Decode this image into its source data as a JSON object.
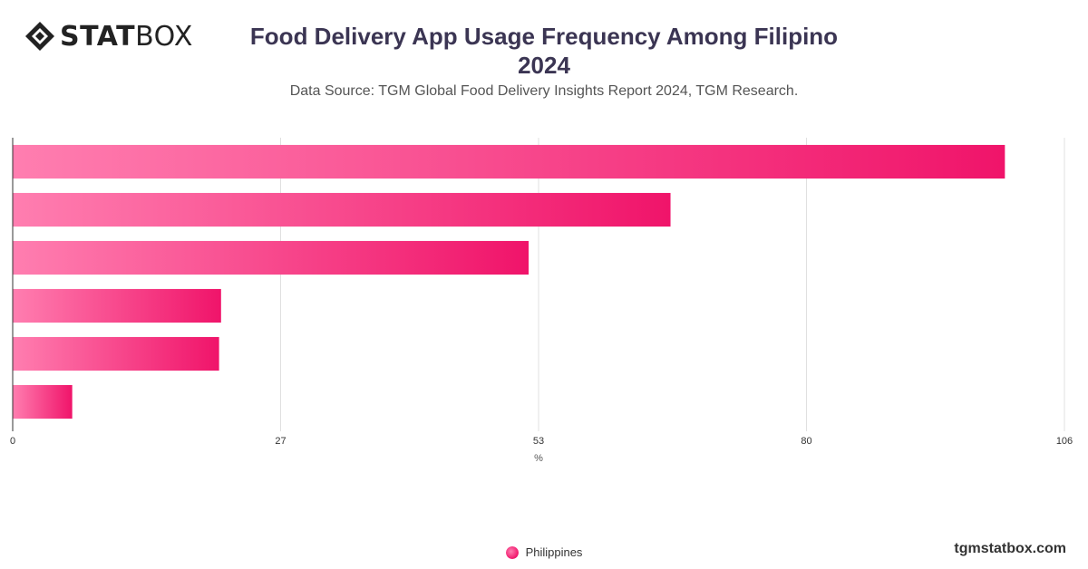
{
  "brand": {
    "bold": "STAT",
    "light": "BOX"
  },
  "header": {
    "title_line1": "Food Delivery App Usage Frequency Among Filipino",
    "title_line2": "2024",
    "subtitle": "Data Source: TGM Global Food Delivery Insights Report 2024, TGM Research."
  },
  "footer": {
    "site": "tgmstatbox.com"
  },
  "colors": {
    "bar_start": "#ff7eb0",
    "bar_end": "#f0146a",
    "grid": "#e0e0e0",
    "axis": "#333333"
  },
  "chart_data": {
    "type": "bar",
    "orientation": "horizontal",
    "categories": [
      "",
      "",
      "",
      "",
      "",
      ""
    ],
    "series": [
      {
        "name": "Philippines",
        "values": [
          100,
          66.3,
          52,
          21,
          20.8,
          6
        ]
      }
    ],
    "xlabel": "%",
    "xlim": [
      0,
      106
    ],
    "xticks": [
      0,
      27,
      53,
      80,
      106
    ],
    "grid": true,
    "legend": "bottom-center"
  }
}
